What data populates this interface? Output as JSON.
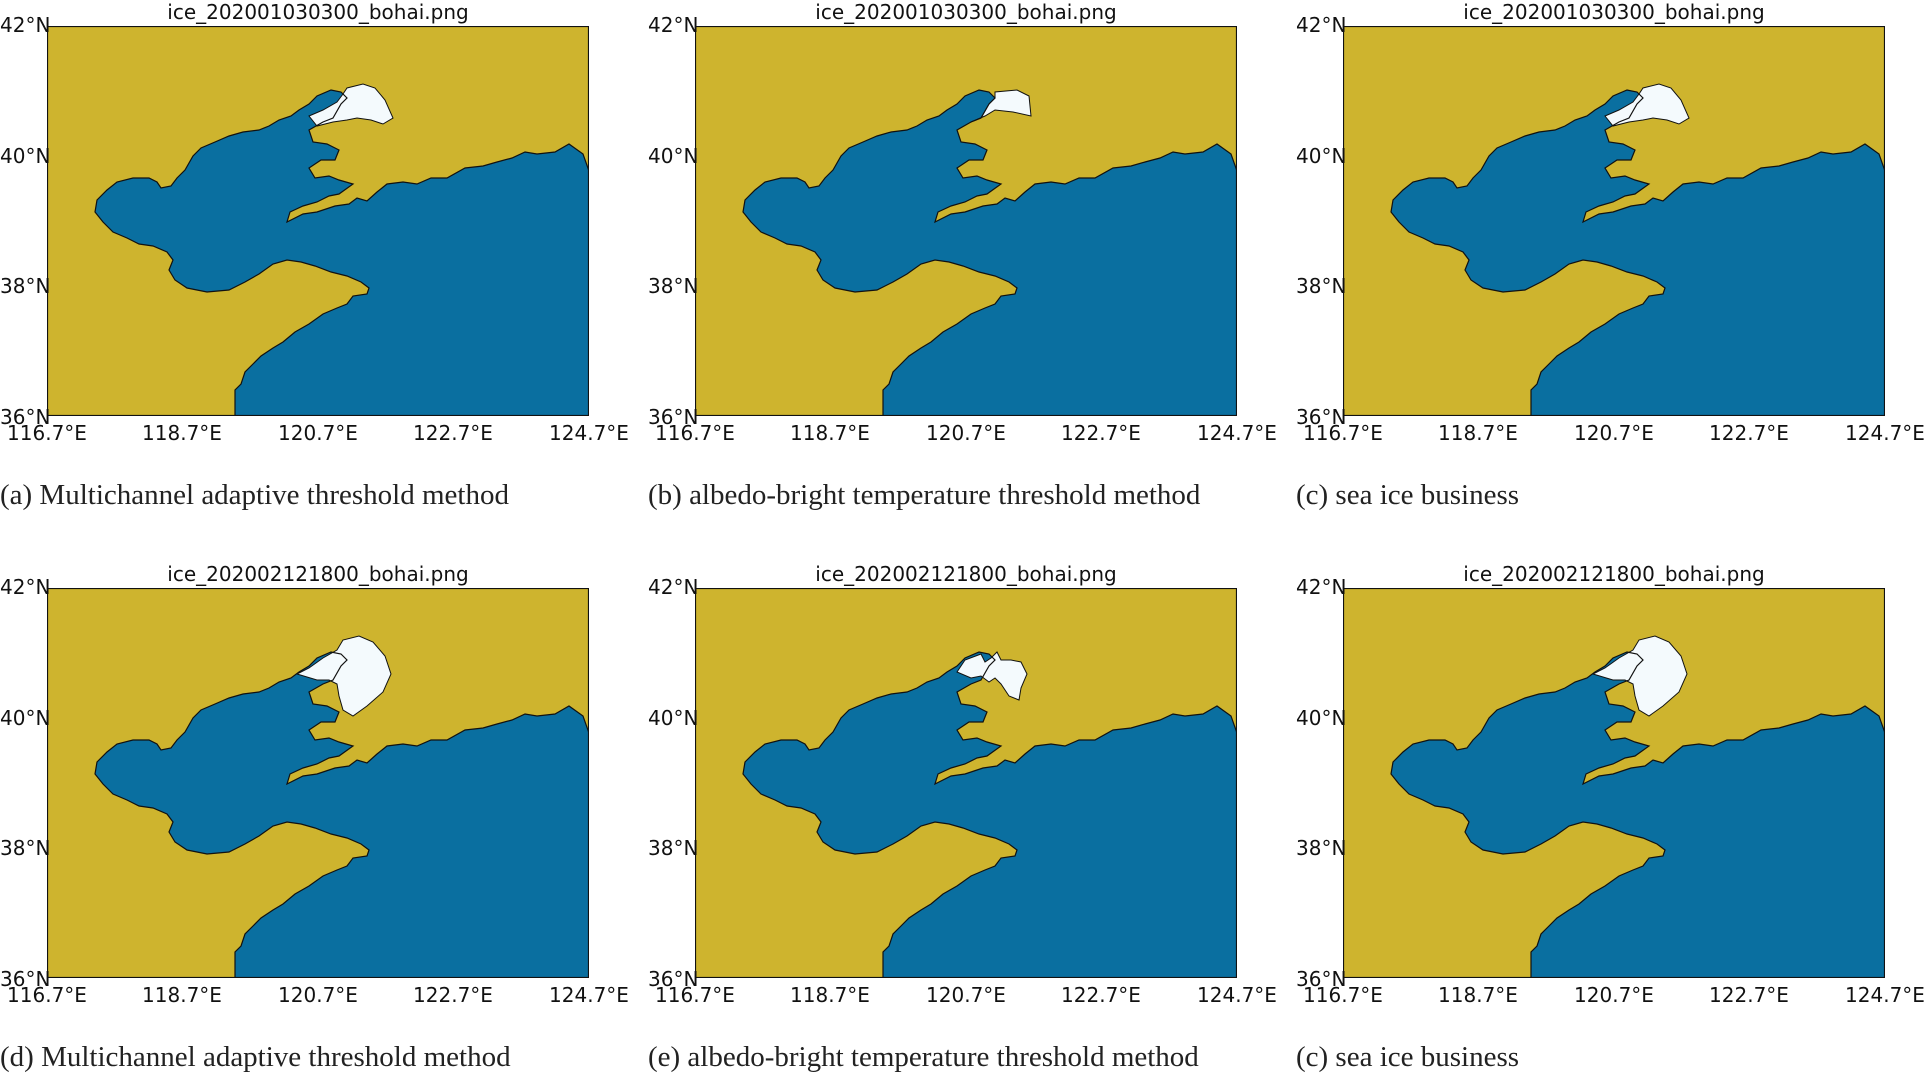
{
  "colors": {
    "land": "#ceb42e",
    "sea": "#0a6fa0",
    "ice": "#f4fafd",
    "coast": "#111111"
  },
  "axes": {
    "y_ticks": [
      "42°N",
      "40°N",
      "38°N",
      "36°N"
    ],
    "x_ticks": [
      "116.7°E",
      "118.7°E",
      "120.7°E",
      "122.7°E",
      "124.7°E"
    ]
  },
  "panels": [
    {
      "title": "ice_202001030300_bohai.png",
      "caption": "(a) Multichannel adaptive threshold method",
      "ice_extent": "partial"
    },
    {
      "title": "ice_202001030300_bohai.png",
      "caption": "(b) albedo-bright temperature threshold method",
      "ice_extent": "small"
    },
    {
      "title": "ice_202001030300_bohai.png",
      "caption": "(c) sea ice business",
      "ice_extent": "partial"
    },
    {
      "title": "ice_202002121800_bohai.png",
      "caption": "(d) Multichannel adaptive threshold method",
      "ice_extent": "large"
    },
    {
      "title": "ice_202002121800_bohai.png",
      "caption": "(e) albedo-bright temperature threshold method",
      "ice_extent": "medium"
    },
    {
      "title": "ice_202002121800_bohai.png",
      "caption": "(c) sea ice business",
      "ice_extent": "large"
    }
  ]
}
